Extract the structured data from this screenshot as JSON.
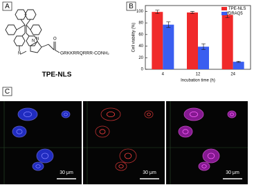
{
  "panels": {
    "a": {
      "label": "A",
      "compound": "TPE-NLS",
      "peptide": "GRKKRRQRRR-CONH₂",
      "atoms": [
        "N",
        "N",
        "N",
        "O"
      ]
    },
    "b": {
      "label": "B"
    },
    "c": {
      "label": "C",
      "scale_bars": [
        "30 μm",
        "30 μm",
        "30 μm"
      ]
    }
  },
  "chart_data": {
    "type": "bar",
    "x_label": "Incubation time (h)",
    "y_label": "Cell viability (%)",
    "categories": [
      "4",
      "12",
      "24"
    ],
    "series": [
      {
        "name": "TPE-NLS",
        "color": "#f02a2a",
        "values": [
          99,
          98,
          94
        ],
        "errors": [
          3,
          2,
          5
        ]
      },
      {
        "name": "DRAQ5",
        "color": "#3a5ef0",
        "values": [
          77,
          39,
          13
        ],
        "errors": [
          5,
          5,
          1
        ]
      }
    ],
    "ylim": [
      0,
      110
    ],
    "yticks": [
      0,
      20,
      40,
      60,
      80,
      100
    ],
    "legend": "upper right"
  }
}
